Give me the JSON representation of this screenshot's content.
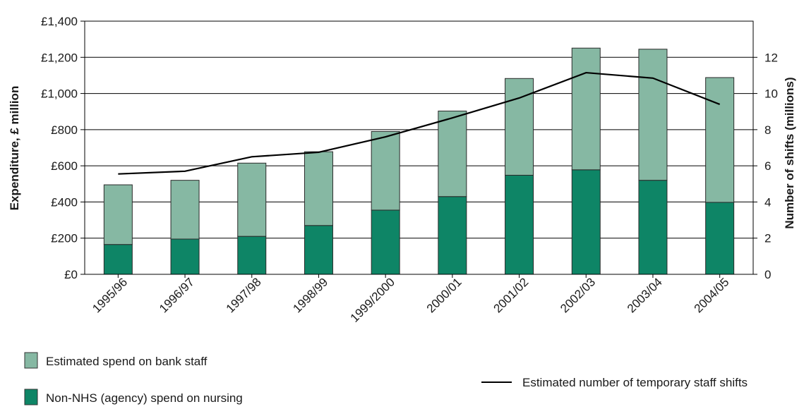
{
  "chart_data": {
    "type": "bar",
    "stacked": true,
    "categories": [
      "1995/96",
      "1996/97",
      "1997/98",
      "1998/99",
      "1999/2000",
      "2000/01",
      "2001/02",
      "2002/03",
      "2003/04",
      "2004/05"
    ],
    "series": [
      {
        "name": "Non-NHS (agency) spend on nursing",
        "color": "#0e8566",
        "axis": "left",
        "values": [
          165,
          195,
          210,
          270,
          355,
          430,
          548,
          578,
          520,
          398
        ]
      },
      {
        "name": "Estimated spend on bank staff",
        "color": "#86b8a3",
        "axis": "left",
        "values": [
          330,
          325,
          405,
          408,
          435,
          473,
          535,
          673,
          725,
          690
        ]
      }
    ],
    "line_series": {
      "name": "Estimated number of temporary staff shifts",
      "color": "#000000",
      "axis": "right",
      "values": [
        5.55,
        5.7,
        6.5,
        6.75,
        7.6,
        8.65,
        9.75,
        11.15,
        10.85,
        9.4
      ]
    },
    "ylabel": "Expenditure, £ million",
    "y2label": "Number of shifts (millions)",
    "ylim": [
      0,
      1400
    ],
    "y2lim": [
      0,
      14
    ],
    "yticks": [
      "£0",
      "£200",
      "£400",
      "£600",
      "£800",
      "£1,000",
      "£1,200",
      "£1,400"
    ],
    "y2ticks": [
      "0",
      "2",
      "4",
      "6",
      "8",
      "10",
      "12"
    ],
    "grid": true,
    "legend_position": "bottom"
  }
}
